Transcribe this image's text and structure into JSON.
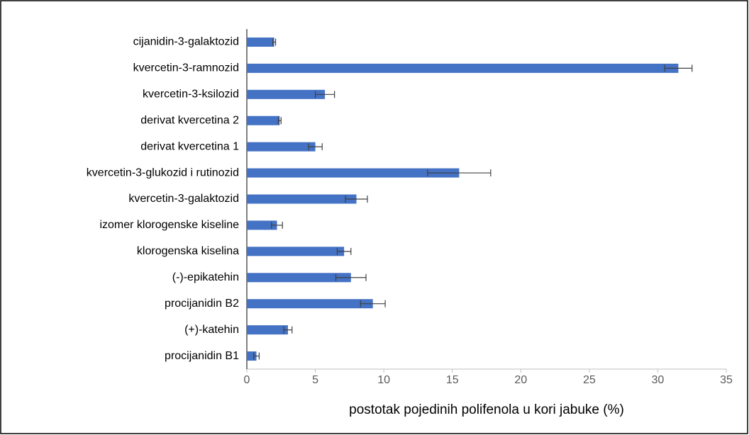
{
  "chart_data": {
    "type": "hbar",
    "xlabel": "postotak pojedinih polifenola u kori jabuke (%)",
    "categories": [
      "cijanidin-3-galaktozid",
      "kvercetin-3-ramnozid",
      "kvercetin-3-ksilozid",
      "derivat kvercetina 2",
      "derivat kvercetina 1",
      "kvercetin-3-glukozid i rutinozid",
      "kvercetin-3-galaktozid",
      "izomer klorogenske kiseline",
      "klorogenska kiselina",
      "(-)-epikatehin",
      "procijanidin B2",
      "(+)-katehin",
      "procijanidin B1"
    ],
    "values": [
      2.0,
      31.5,
      5.7,
      2.4,
      5.0,
      15.5,
      8.0,
      2.2,
      7.1,
      7.6,
      9.2,
      3.0,
      0.7
    ],
    "errors": [
      0.1,
      1.0,
      0.7,
      0.1,
      0.5,
      2.3,
      0.8,
      0.4,
      0.5,
      1.1,
      0.9,
      0.3,
      0.2
    ],
    "color": "#4472c4",
    "xlim": [
      0,
      35
    ],
    "xticks": [
      0,
      5,
      10,
      15,
      20,
      25,
      30,
      35
    ],
    "grid": false
  }
}
